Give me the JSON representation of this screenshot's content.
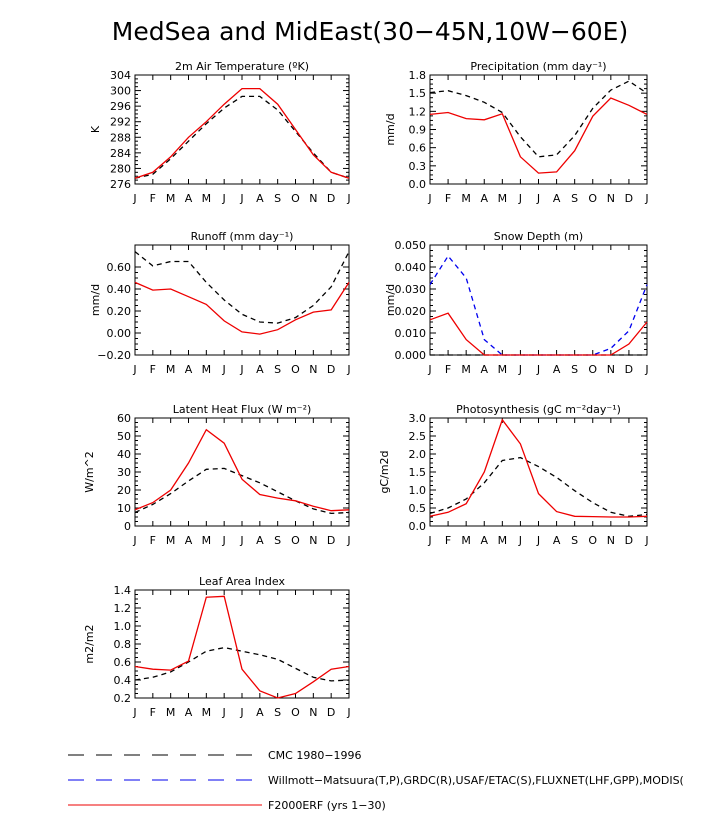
{
  "title": "MedSea and MidEast(30−45N,10W−60E)",
  "months": [
    "J",
    "F",
    "M",
    "A",
    "M",
    "J",
    "J",
    "A",
    "S",
    "O",
    "N",
    "D",
    "J"
  ],
  "colors": {
    "cmc": "#000000",
    "obs": "#0000ee",
    "model": "#ee0000"
  },
  "legend": [
    {
      "key": "cmc",
      "label": "CMC 1980−1996",
      "style": "long-dash"
    },
    {
      "key": "obs",
      "label": "Willmott−Matsuura(T,P),GRDC(R),USAF/ETAC(S),FLUXNET(LHF,GPP),MODIS(",
      "style": "long-dash"
    },
    {
      "key": "model",
      "label": "F2000ERF (yrs 1−30)",
      "style": "solid"
    }
  ],
  "chart_data": [
    {
      "type": "line",
      "title": "2m Air Temperature (ºK)",
      "ylabel": "K",
      "ylim": [
        276,
        304
      ],
      "yticks": [
        "276",
        "280",
        "284",
        "288",
        "292",
        "296",
        "300",
        "304"
      ],
      "ytick_values": [
        276,
        280,
        284,
        288,
        292,
        296,
        300,
        304
      ],
      "series": [
        {
          "name": "CMC 1980−1996",
          "key": "cmc",
          "values": [
            277.5,
            278.5,
            282.5,
            287,
            291.5,
            295.5,
            298.5,
            298.5,
            295,
            289.5,
            284,
            279,
            277.5
          ]
        },
        {
          "name": "F2000ERF (yrs 1−30)",
          "key": "model",
          "values": [
            277.5,
            279,
            283,
            288,
            292,
            296.5,
            300.5,
            300.5,
            296.5,
            290,
            283.5,
            279,
            277.5
          ]
        }
      ]
    },
    {
      "type": "line",
      "title": "Precipitation (mm day⁻¹)",
      "ylabel": "mm/d",
      "ylim": [
        0,
        1.8
      ],
      "yticks": [
        "0.0",
        "0.3",
        "0.6",
        "0.9",
        "1.2",
        "1.5",
        "1.8"
      ],
      "ytick_values": [
        0,
        0.3,
        0.6,
        0.9,
        1.2,
        1.5,
        1.8
      ],
      "series": [
        {
          "name": "CMC 1980−1996",
          "key": "cmc",
          "values": [
            1.51,
            1.54,
            1.46,
            1.35,
            1.18,
            0.78,
            0.45,
            0.48,
            0.8,
            1.25,
            1.55,
            1.7,
            1.5
          ]
        },
        {
          "name": "F2000ERF (yrs 1−30)",
          "key": "model",
          "values": [
            1.15,
            1.18,
            1.08,
            1.06,
            1.16,
            0.45,
            0.18,
            0.2,
            0.55,
            1.12,
            1.42,
            1.3,
            1.15
          ]
        }
      ]
    },
    {
      "type": "line",
      "title": "Runoff (mm day⁻¹)",
      "ylabel": "mm/d",
      "ylim": [
        -0.2,
        0.8
      ],
      "yticks": [
        "−0.20",
        "0.00",
        "0.20",
        "0.40",
        "0.60"
      ],
      "ytick_values": [
        -0.2,
        0,
        0.2,
        0.4,
        0.6
      ],
      "series": [
        {
          "name": "CMC 1980−1996",
          "key": "cmc",
          "values": [
            0.74,
            0.61,
            0.65,
            0.65,
            0.46,
            0.3,
            0.17,
            0.1,
            0.09,
            0.14,
            0.25,
            0.42,
            0.74
          ]
        },
        {
          "name": "F2000ERF (yrs 1−30)",
          "key": "model",
          "values": [
            0.46,
            0.39,
            0.4,
            0.33,
            0.26,
            0.11,
            0.01,
            -0.01,
            0.03,
            0.12,
            0.19,
            0.21,
            0.46
          ]
        }
      ]
    },
    {
      "type": "line",
      "title": "Snow Depth (m)",
      "ylabel": "mm/d",
      "ylim": [
        0,
        0.05
      ],
      "yticks": [
        "0.000",
        "0.010",
        "0.020",
        "0.030",
        "0.040",
        "0.050"
      ],
      "ytick_values": [
        0,
        0.01,
        0.02,
        0.03,
        0.04,
        0.05
      ],
      "series": [
        {
          "name": "CMC 1980−1996",
          "key": "cmc",
          "values": [
            0,
            0,
            0,
            0,
            0,
            0,
            0,
            0,
            0,
            0,
            0,
            0,
            0
          ]
        },
        {
          "name": "Willmott−Matsuura / USAF/ETAC",
          "key": "obs",
          "values": [
            0.032,
            0.045,
            0.035,
            0.007,
            0,
            0,
            0,
            0,
            0,
            0,
            0.003,
            0.011,
            0.032
          ]
        },
        {
          "name": "F2000ERF (yrs 1−30)",
          "key": "model",
          "values": [
            0.016,
            0.019,
            0.007,
            0,
            0,
            0,
            0,
            0,
            0,
            0,
            0,
            0.005,
            0.015
          ]
        }
      ]
    },
    {
      "type": "line",
      "title": "Latent Heat Flux (W m⁻²)",
      "ylabel": "W/m^2",
      "ylim": [
        0,
        60
      ],
      "yticks": [
        "0",
        "10",
        "20",
        "30",
        "40",
        "50",
        "60"
      ],
      "ytick_values": [
        0,
        10,
        20,
        30,
        40,
        50,
        60
      ],
      "series": [
        {
          "name": "CMC 1980−1996",
          "key": "cmc",
          "values": [
            7.5,
            12,
            18,
            25,
            31.5,
            32,
            28,
            24,
            19,
            14,
            9.5,
            7,
            7.5
          ]
        },
        {
          "name": "F2000ERF (yrs 1−30)",
          "key": "model",
          "values": [
            9,
            13,
            20,
            35,
            53.5,
            46,
            26,
            17.5,
            15.5,
            14,
            11,
            8.5,
            9
          ]
        }
      ]
    },
    {
      "type": "line",
      "title": "Photosynthesis (gC m⁻²day⁻¹)",
      "ylabel": "gC/m2d",
      "ylim": [
        0,
        3.0
      ],
      "yticks": [
        "0.0",
        "0.5",
        "1.0",
        "1.5",
        "2.0",
        "2.5",
        "3.0"
      ],
      "ytick_values": [
        0,
        0.5,
        1,
        1.5,
        2,
        2.5,
        3
      ],
      "series": [
        {
          "name": "CMC 1980−1996",
          "key": "cmc",
          "values": [
            0.35,
            0.5,
            0.75,
            1.2,
            1.82,
            1.9,
            1.65,
            1.35,
            0.98,
            0.65,
            0.38,
            0.27,
            0.32
          ]
        },
        {
          "name": "F2000ERF (yrs 1−30)",
          "key": "model",
          "values": [
            0.27,
            0.38,
            0.62,
            1.5,
            2.95,
            2.28,
            0.9,
            0.4,
            0.27,
            0.26,
            0.25,
            0.25,
            0.27
          ]
        }
      ]
    },
    {
      "type": "line",
      "title": "Leaf Area Index",
      "ylabel": "m2/m2",
      "ylim": [
        0.2,
        1.4
      ],
      "yticks": [
        "0.2",
        "0.4",
        "0.6",
        "0.8",
        "1.0",
        "1.2",
        "1.4"
      ],
      "ytick_values": [
        0.2,
        0.4,
        0.6,
        0.8,
        1.0,
        1.2,
        1.4
      ],
      "series": [
        {
          "name": "CMC 1980−1996",
          "key": "cmc",
          "values": [
            0.4,
            0.43,
            0.49,
            0.6,
            0.72,
            0.76,
            0.72,
            0.68,
            0.63,
            0.53,
            0.43,
            0.39,
            0.4
          ]
        },
        {
          "name": "F2000ERF (yrs 1−30)",
          "key": "model",
          "values": [
            0.55,
            0.52,
            0.51,
            0.61,
            1.32,
            1.33,
            0.52,
            0.28,
            0.2,
            0.25,
            0.38,
            0.52,
            0.55
          ]
        }
      ]
    }
  ]
}
